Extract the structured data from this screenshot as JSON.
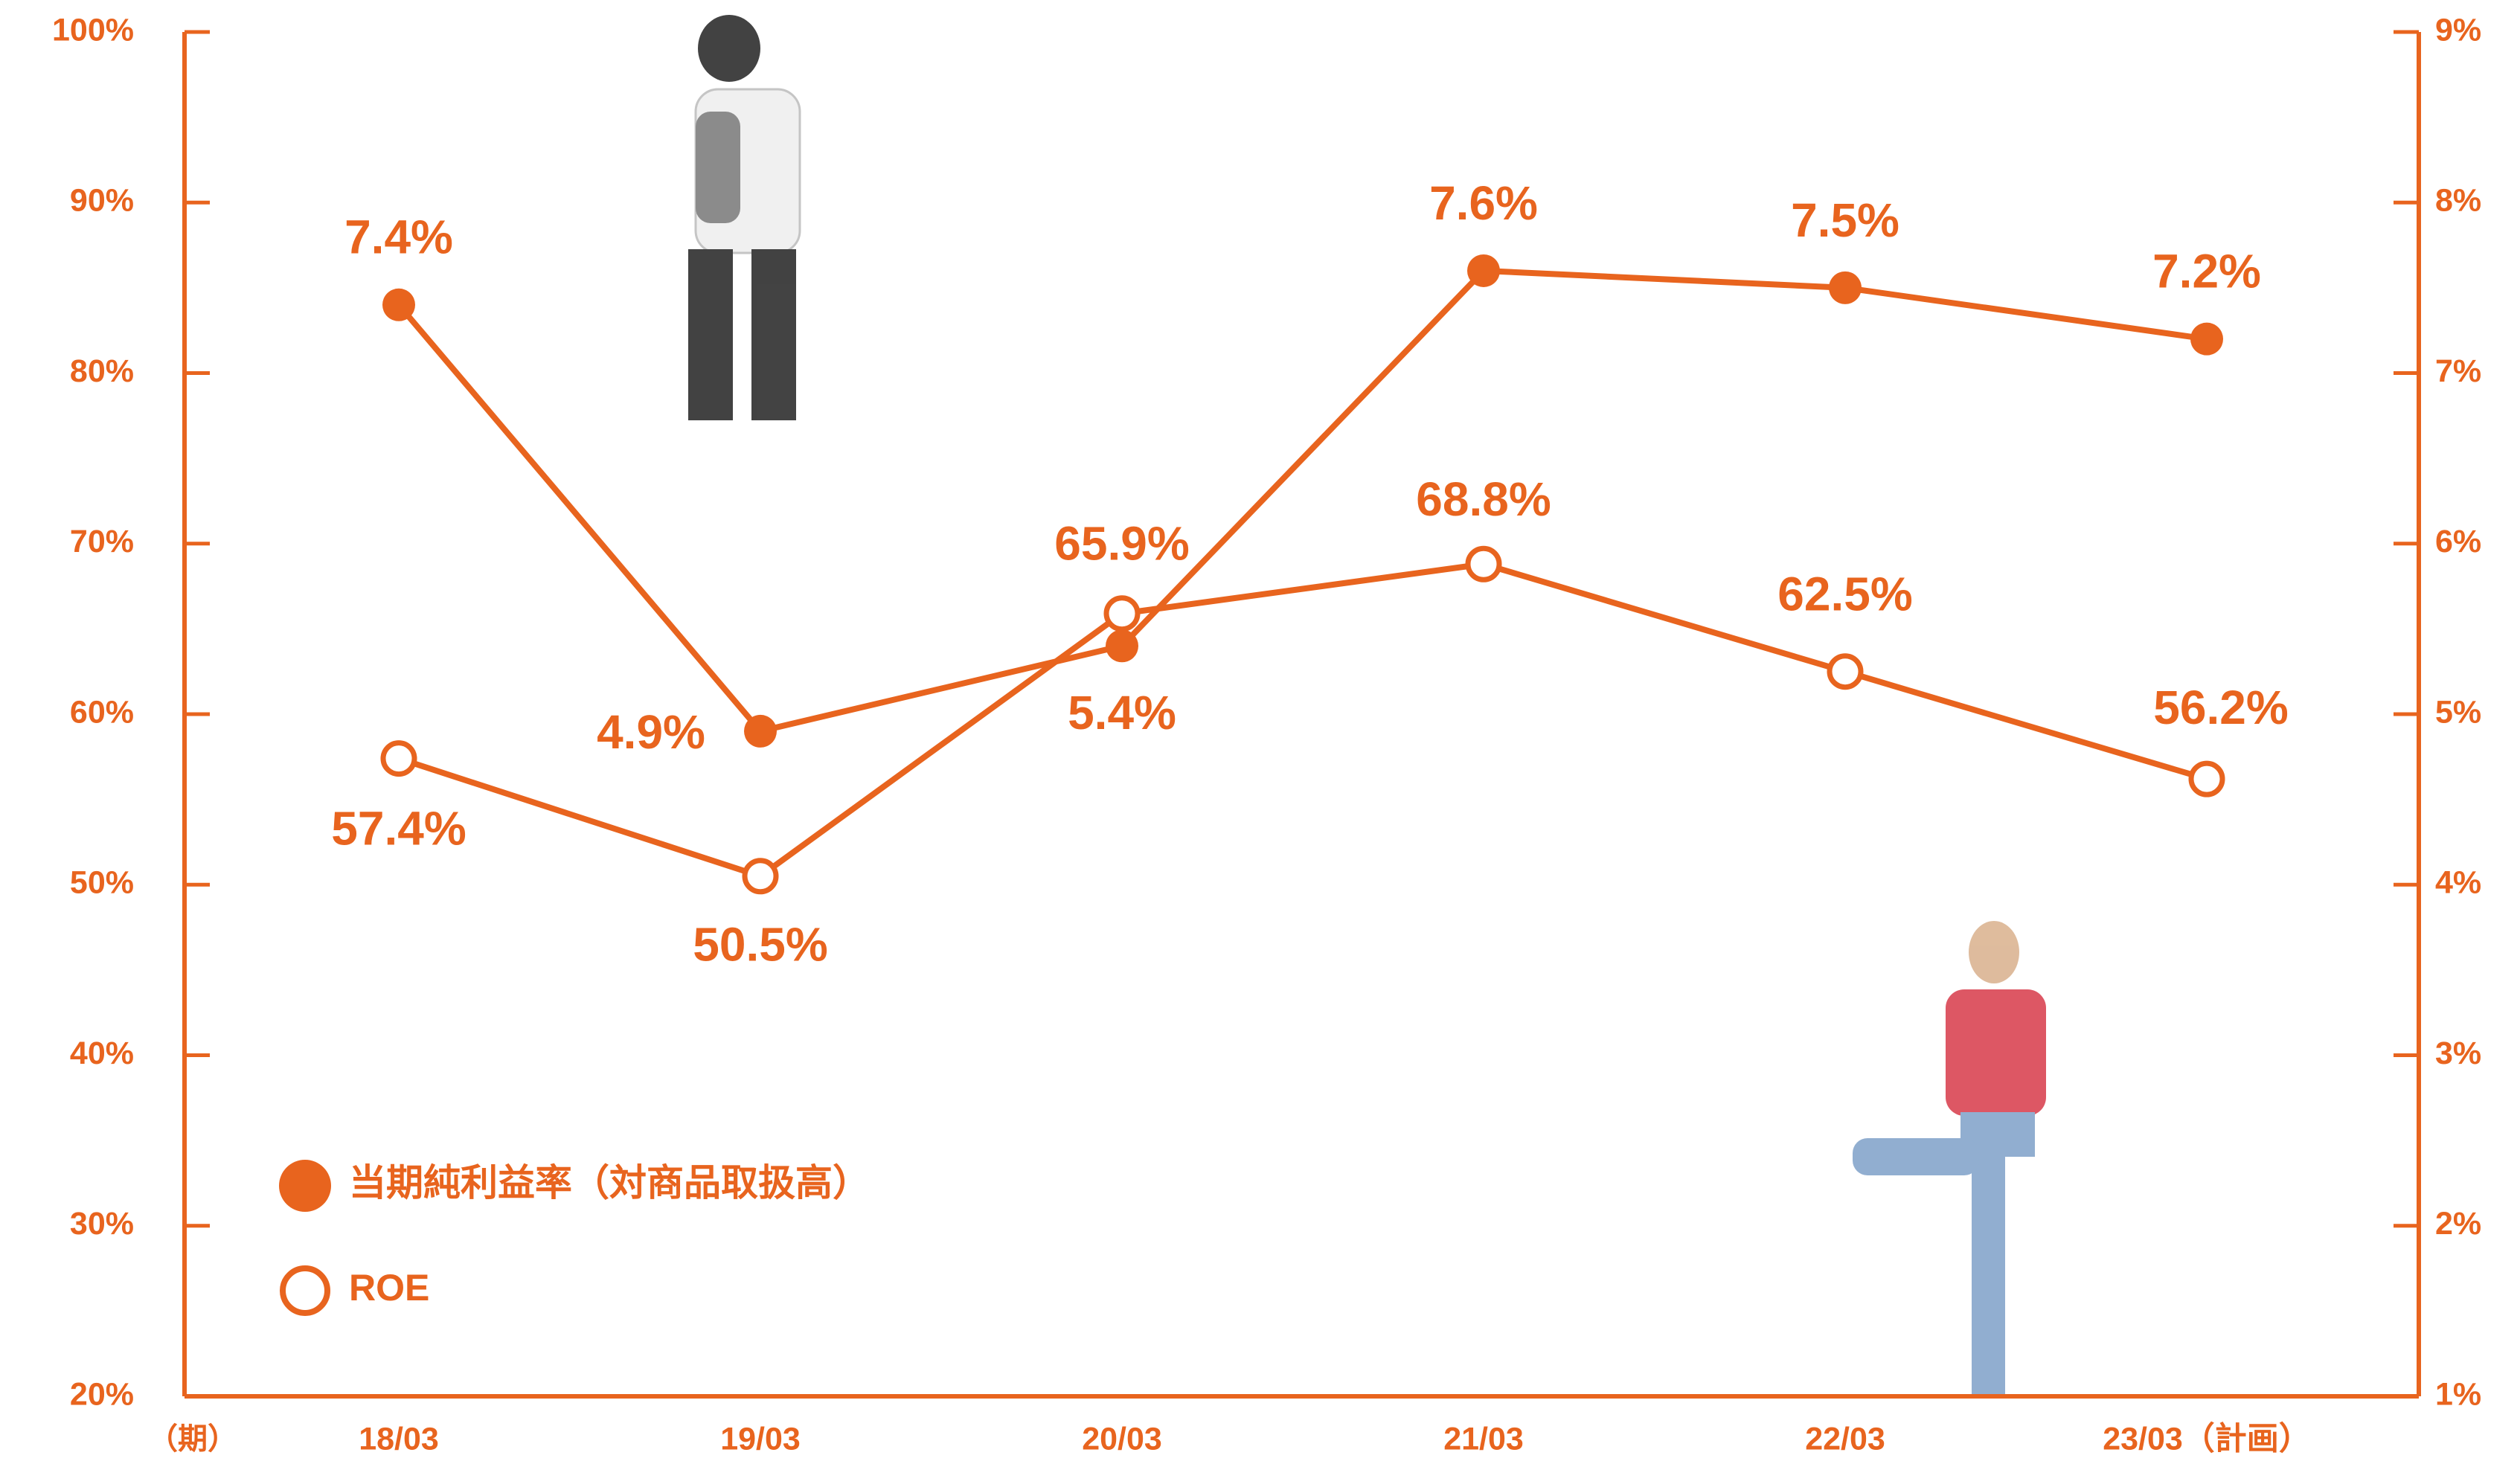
{
  "chart_data": {
    "type": "line",
    "x_label": "（期）",
    "categories": [
      "18/03",
      "19/03",
      "20/03",
      "21/03",
      "22/03",
      "23/03（計画）"
    ],
    "series": [
      {
        "name": "当期純利益率（対商品取扱高）",
        "color": "#e8641e",
        "axis": "y2",
        "marker": "filled",
        "values": [
          7.4,
          4.9,
          5.4,
          7.6,
          7.5,
          7.2
        ],
        "value_labels": [
          "7.4%",
          "4.9%",
          "5.4%",
          "7.6%",
          "7.5%",
          "7.2%"
        ]
      },
      {
        "name": "ROE",
        "color": "#e8641e",
        "marker": "open",
        "values": [
          57.4,
          50.5,
          65.9,
          68.8,
          62.5,
          56.2
        ],
        "value_labels": [
          "57.4%",
          "50.5%",
          "65.9%",
          "68.8%",
          "62.5%",
          "56.2%"
        ]
      }
    ],
    "ylim": [
      20,
      100
    ],
    "yticks": [
      {
        "value": 20,
        "label": "20%"
      },
      {
        "value": 30,
        "label": "30%"
      },
      {
        "value": 40,
        "label": "40%"
      },
      {
        "value": 50,
        "label": "50%"
      },
      {
        "value": 60,
        "label": "60%"
      },
      {
        "value": 70,
        "label": "70%"
      },
      {
        "value": 80,
        "label": "80%"
      },
      {
        "value": 90,
        "label": "90%"
      },
      {
        "value": 100,
        "label": "100%"
      }
    ],
    "y2lim": [
      1,
      9
    ],
    "y2ticks": [
      {
        "value": 1,
        "label": "1%"
      },
      {
        "value": 2,
        "label": "2%"
      },
      {
        "value": 3,
        "label": "3%"
      },
      {
        "value": 4,
        "label": "4%"
      },
      {
        "value": 5,
        "label": "5%"
      },
      {
        "value": 6,
        "label": "6%"
      },
      {
        "value": 7,
        "label": "7%"
      },
      {
        "value": 8,
        "label": "8%"
      },
      {
        "value": 9,
        "label": "9%"
      }
    ],
    "axis_color": "#e8641e",
    "grid": false
  }
}
